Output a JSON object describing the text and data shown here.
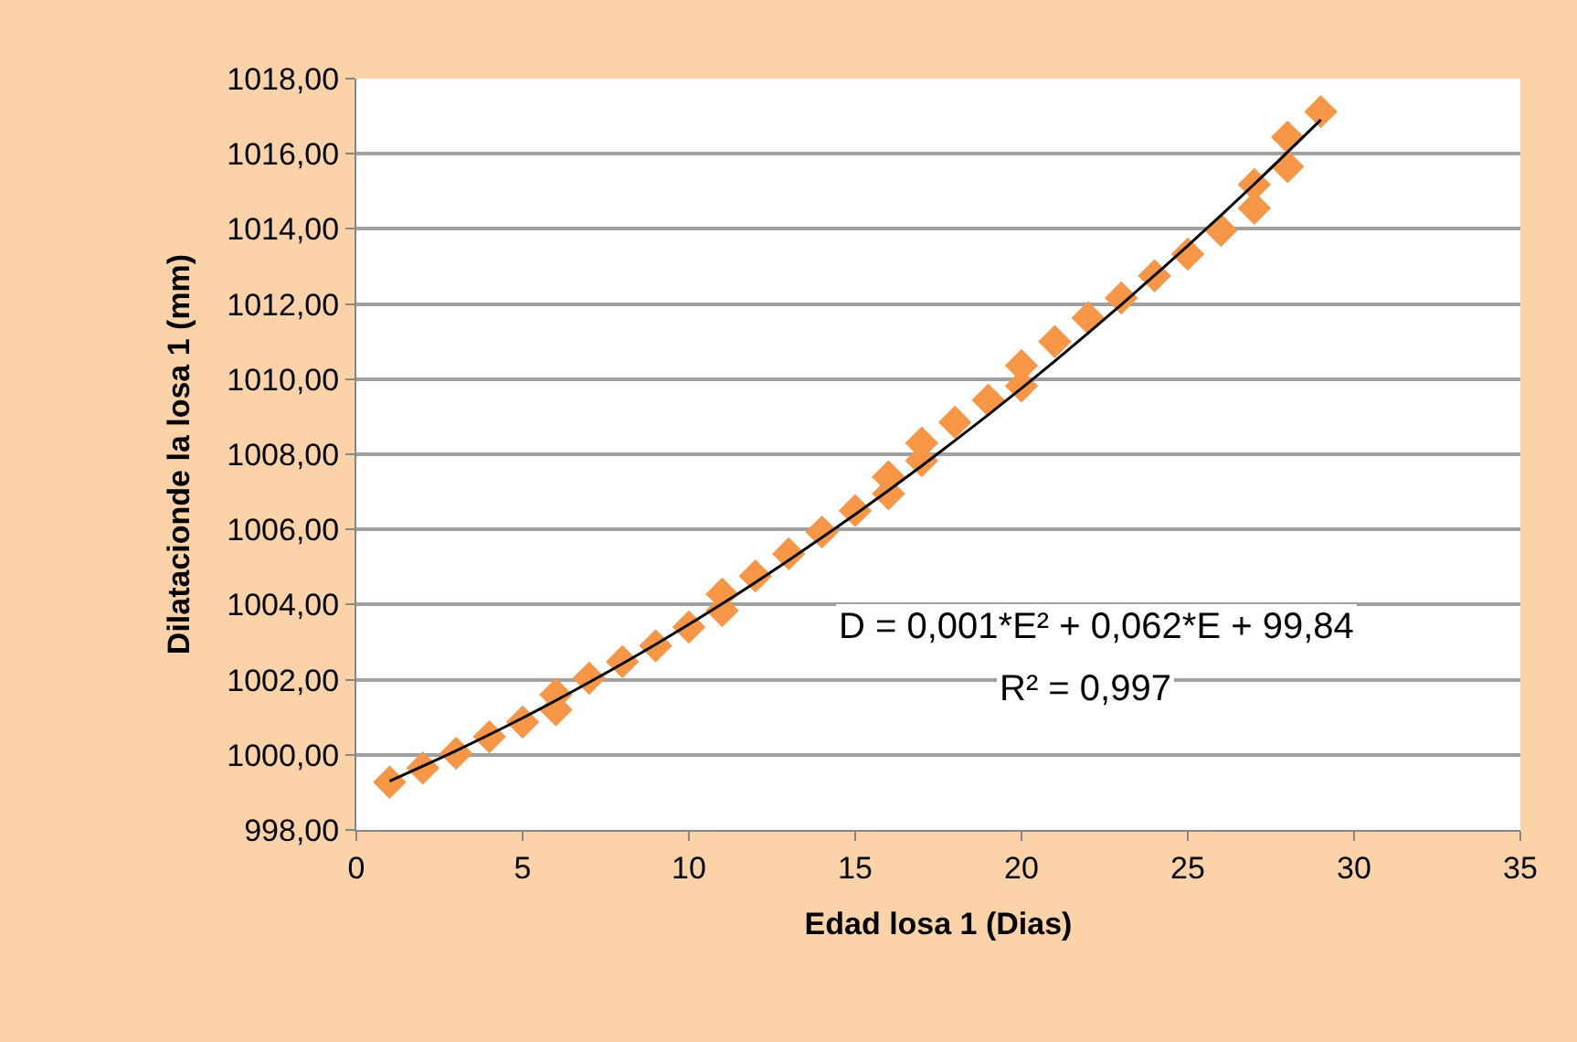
{
  "chart_data": {
    "type": "scatter",
    "xlabel": "Edad losa 1 (Dias)",
    "ylabel": "Dilatacionde la losa 1 (mm)",
    "xlim": [
      0,
      35
    ],
    "xticks": [
      0,
      5,
      10,
      15,
      20,
      25,
      30,
      35
    ],
    "ylim": [
      998,
      1018
    ],
    "yticks": [
      {
        "value": 998,
        "label": "998,00"
      },
      {
        "value": 1000,
        "label": "1000,00"
      },
      {
        "value": 1002,
        "label": "1002,00"
      },
      {
        "value": 1004,
        "label": "1004,00"
      },
      {
        "value": 1006,
        "label": "1006,00"
      },
      {
        "value": 1008,
        "label": "1008,00"
      },
      {
        "value": 1010,
        "label": "1010,00"
      },
      {
        "value": 1012,
        "label": "1012,00"
      },
      {
        "value": 1014,
        "label": "1014,00"
      },
      {
        "value": 1016,
        "label": "1016,00"
      },
      {
        "value": 1018,
        "label": "1018,00"
      }
    ],
    "grid": "y",
    "series": [
      {
        "marker": "diamond",
        "color": "#f79646",
        "x": [
          1,
          2,
          3,
          4,
          5,
          6,
          6,
          7,
          8,
          9,
          10,
          11,
          11,
          12,
          13,
          14,
          15,
          16,
          16,
          17,
          17,
          18,
          19,
          20,
          20,
          21,
          22,
          23,
          24,
          25,
          26,
          27,
          27,
          28,
          28,
          29
        ],
        "values": [
          999.27,
          999.65,
          1000.04,
          1000.48,
          1000.87,
          1001.6,
          1001.2,
          1002.04,
          1002.48,
          1002.9,
          1003.4,
          1004.28,
          1003.84,
          1004.76,
          1005.35,
          1005.93,
          1006.5,
          1007.4,
          1006.95,
          1008.3,
          1007.83,
          1008.85,
          1009.44,
          1010.36,
          1009.82,
          1011.0,
          1011.63,
          1012.16,
          1012.75,
          1013.33,
          1013.96,
          1015.18,
          1014.55,
          1016.44,
          1015.66,
          1017.12
        ]
      },
      {
        "type": "line",
        "marker": "none",
        "line_style": "solid",
        "color": "#000000",
        "x": [
          1,
          3,
          5,
          7,
          9,
          11,
          13,
          15,
          17,
          19,
          21,
          23,
          25,
          27,
          29
        ],
        "values": [
          999.3,
          1000.11,
          1000.98,
          1001.93,
          1002.94,
          1004.02,
          1005.18,
          1006.4,
          1007.69,
          1009.05,
          1010.48,
          1011.98,
          1013.55,
          1015.19,
          1016.9
        ]
      }
    ],
    "annotations": [
      "D = 0,001*E² + 0,062*E + 99,84",
      "R² = 0,997"
    ]
  }
}
